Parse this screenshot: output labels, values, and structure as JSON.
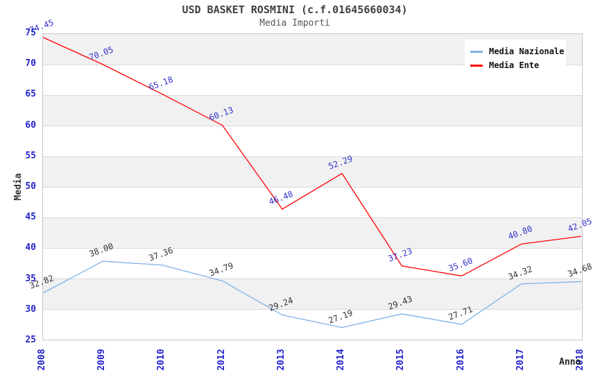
{
  "title": "USD BASKET ROSMINI (c.f.01645660034)",
  "subtitle": "Media Importi",
  "chart_data": {
    "type": "line",
    "title": "USD BASKET ROSMINI (c.f.01645660034)",
    "subtitle": "Media Importi",
    "xlabel": "Anno",
    "ylabel": "Media",
    "categories": [
      "2008",
      "2009",
      "2010",
      "2012",
      "2013",
      "2014",
      "2015",
      "2016",
      "2017",
      "2018"
    ],
    "series": [
      {
        "name": "Media Nazionale",
        "color": "#7eb1e6",
        "label_color": "#333333",
        "values": [
          32.82,
          38.0,
          37.36,
          34.79,
          29.24,
          27.19,
          29.43,
          27.71,
          34.32,
          34.68
        ]
      },
      {
        "name": "Media Ente",
        "color": "#ff0000",
        "label_color": "#3333cc",
        "values": [
          74.45,
          70.05,
          65.18,
          60.13,
          46.48,
          52.29,
          37.23,
          35.6,
          40.8,
          42.05
        ]
      }
    ],
    "ylim": [
      25,
      75
    ],
    "ytick_step": 5,
    "grid": "horizontal bands alternating gray and white, line at every tick",
    "legend_position": "top-right",
    "legend_entries": [
      "Media Nazionale",
      "Media Ente"
    ]
  },
  "style_colors": {
    "band_gray": "#f1f1f1",
    "gridline": "#d9d9d9",
    "plot_border": "#c6c6c6",
    "axis_tick_text": "#2222cc",
    "title_text": "#404040",
    "subtitle_text": "#555555"
  }
}
